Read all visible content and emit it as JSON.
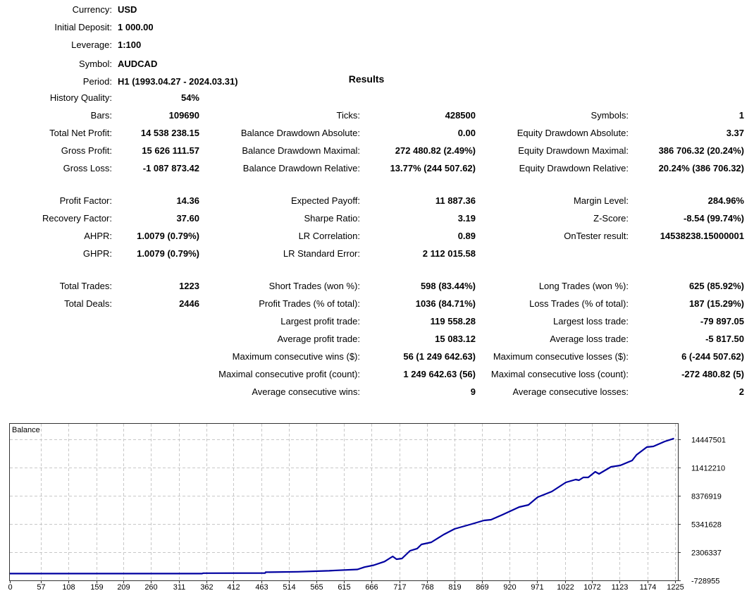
{
  "settings": [
    {
      "label": "Currency:",
      "value": "USD"
    },
    {
      "label": "Initial Deposit:",
      "value": "1 000.00"
    },
    {
      "label": "Leverage:",
      "value": "1:100"
    },
    {
      "label": "Symbol:",
      "value": "AUDCAD"
    },
    {
      "label": "Period:",
      "value": "H1 (1993.04.27 - 2024.03.31)"
    }
  ],
  "results_title": "Results",
  "col1": [
    {
      "label": "History Quality:",
      "value": "54%"
    },
    {
      "label": "Bars:",
      "value": "109690"
    },
    {
      "label": "Total Net Profit:",
      "value": "14 538 238.15"
    },
    {
      "label": "Gross Profit:",
      "value": "15 626 111.57"
    },
    {
      "label": "Gross Loss:",
      "value": "-1 087 873.42"
    },
    {
      "label": "Profit Factor:",
      "value": "14.36"
    },
    {
      "label": "Recovery Factor:",
      "value": "37.60"
    },
    {
      "label": "AHPR:",
      "value": "1.0079 (0.79%)"
    },
    {
      "label": "GHPR:",
      "value": "1.0079 (0.79%)"
    },
    {
      "label": "Total Trades:",
      "value": "1223"
    },
    {
      "label": "Total Deals:",
      "value": "2446"
    }
  ],
  "col2": [
    {
      "label": "Ticks:",
      "value": "428500"
    },
    {
      "label": "Balance Drawdown Absolute:",
      "value": "0.00"
    },
    {
      "label": "Balance Drawdown Maximal:",
      "value": "272 480.82 (2.49%)"
    },
    {
      "label": "Balance Drawdown Relative:",
      "value": "13.77% (244 507.62)"
    },
    {
      "label": "Expected Payoff:",
      "value": "11 887.36"
    },
    {
      "label": "Sharpe Ratio:",
      "value": "3.19"
    },
    {
      "label": "LR Correlation:",
      "value": "0.89"
    },
    {
      "label": "LR Standard Error:",
      "value": "2 112 015.58"
    },
    {
      "label": "Short Trades (won %):",
      "value": "598 (83.44%)"
    },
    {
      "label": "Profit Trades (% of total):",
      "value": "1036 (84.71%)"
    },
    {
      "label": "Largest profit trade:",
      "value": "119 558.28"
    },
    {
      "label": "Average profit trade:",
      "value": "15 083.12"
    },
    {
      "label": "Maximum consecutive wins ($):",
      "value": "56 (1 249 642.63)"
    },
    {
      "label": "Maximal consecutive profit (count):",
      "value": "1 249 642.63 (56)"
    },
    {
      "label": "Average consecutive wins:",
      "value": "9"
    }
  ],
  "col3": [
    {
      "label": "Symbols:",
      "value": "1"
    },
    {
      "label": "Equity Drawdown Absolute:",
      "value": "3.37"
    },
    {
      "label": "Equity Drawdown Maximal:",
      "value": "386 706.32 (20.24%)"
    },
    {
      "label": "Equity Drawdown Relative:",
      "value": "20.24% (386 706.32)"
    },
    {
      "label": "Margin Level:",
      "value": "284.96%"
    },
    {
      "label": "Z-Score:",
      "value": "-8.54 (99.74%)"
    },
    {
      "label": "OnTester result:",
      "value": "14538238.15000001"
    },
    {
      "label": "Long Trades (won %):",
      "value": "625 (85.92%)"
    },
    {
      "label": "Loss Trades (% of total):",
      "value": "187 (15.29%)"
    },
    {
      "label": "Largest loss trade:",
      "value": "-79 897.05"
    },
    {
      "label": "Average loss trade:",
      "value": "-5 817.50"
    },
    {
      "label": "Maximum consecutive losses ($):",
      "value": "6 (-244 507.62)"
    },
    {
      "label": "Maximal consecutive loss (count):",
      "value": "-272 480.82 (5)"
    },
    {
      "label": "Average consecutive losses:",
      "value": "2"
    }
  ],
  "chart_data": {
    "type": "line",
    "title": "Balance",
    "xlabel": "",
    "ylabel": "",
    "x_ticks": [
      0,
      57,
      108,
      159,
      209,
      260,
      311,
      362,
      412,
      463,
      514,
      565,
      615,
      666,
      717,
      768,
      819,
      869,
      920,
      971,
      1022,
      1072,
      1123,
      1174,
      1225
    ],
    "y_ticks": [
      -728955,
      2306337,
      5341628,
      8376919,
      11412210,
      14447501
    ],
    "ylim": [
      -728955,
      15206329
    ],
    "xlim": [
      0,
      1230
    ],
    "grid": true,
    "line_color": "#0000a0",
    "series": [
      {
        "name": "Balance",
        "points": [
          [
            0,
            1000
          ],
          [
            354,
            1000
          ],
          [
            356,
            45000
          ],
          [
            470,
            60000
          ],
          [
            471,
            150000
          ],
          [
            531,
            200000
          ],
          [
            588,
            300000
          ],
          [
            602,
            350000
          ],
          [
            640,
            450000
          ],
          [
            653,
            700000
          ],
          [
            670,
            900000
          ],
          [
            690,
            1300000
          ],
          [
            705,
            1850000
          ],
          [
            712,
            1550000
          ],
          [
            722,
            1620000
          ],
          [
            737,
            2460000
          ],
          [
            750,
            2690000
          ],
          [
            758,
            3140000
          ],
          [
            776,
            3370000
          ],
          [
            799,
            4200000
          ],
          [
            819,
            4810000
          ],
          [
            851,
            5340000
          ],
          [
            873,
            5720000
          ],
          [
            886,
            5800000
          ],
          [
            907,
            6330000
          ],
          [
            938,
            7160000
          ],
          [
            955,
            7390000
          ],
          [
            972,
            8225000
          ],
          [
            998,
            8830000
          ],
          [
            1024,
            9820000
          ],
          [
            1042,
            10120000
          ],
          [
            1048,
            10046000
          ],
          [
            1056,
            10350000
          ],
          [
            1065,
            10350000
          ],
          [
            1078,
            10957000
          ],
          [
            1085,
            10730000
          ],
          [
            1107,
            11490000
          ],
          [
            1124,
            11640000
          ],
          [
            1146,
            12170000
          ],
          [
            1154,
            12780000
          ],
          [
            1173,
            13610000
          ],
          [
            1185,
            13690000
          ],
          [
            1206,
            14220000
          ],
          [
            1223,
            14539238
          ]
        ]
      }
    ]
  }
}
